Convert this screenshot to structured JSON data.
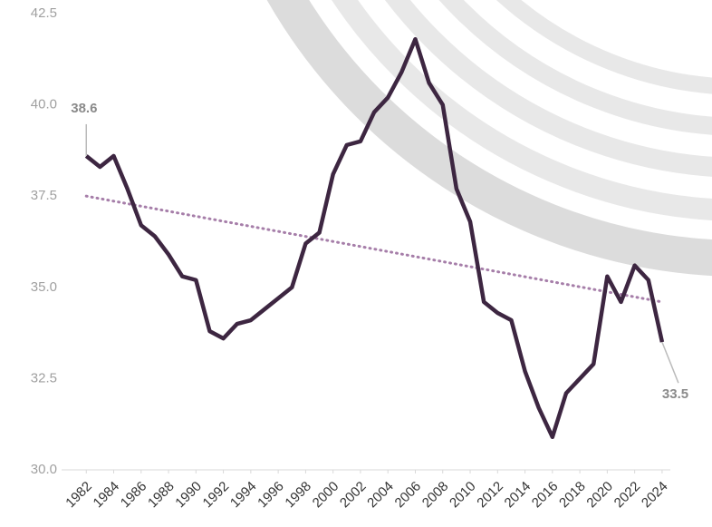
{
  "chart_data": {
    "type": "line",
    "x": [
      1982,
      1983,
      1984,
      1985,
      1986,
      1987,
      1988,
      1989,
      1990,
      1991,
      1992,
      1993,
      1994,
      1995,
      1996,
      1997,
      1998,
      1999,
      2000,
      2001,
      2002,
      2003,
      2004,
      2005,
      2006,
      2007,
      2008,
      2009,
      2010,
      2011,
      2012,
      2013,
      2014,
      2015,
      2016,
      2017,
      2018,
      2019,
      2020,
      2021,
      2022,
      2023,
      2024
    ],
    "series": [
      {
        "color": "#3d2641",
        "values": [
          38.6,
          38.3,
          38.6,
          37.7,
          36.7,
          36.4,
          35.9,
          35.3,
          35.2,
          33.8,
          33.6,
          34.0,
          34.1,
          34.4,
          34.7,
          35.0,
          36.2,
          36.5,
          38.1,
          38.9,
          39.0,
          39.8,
          40.2,
          40.9,
          41.8,
          40.6,
          40.0,
          37.7,
          36.8,
          34.6,
          34.3,
          34.1,
          32.7,
          31.7,
          30.9,
          32.1,
          32.5,
          32.9,
          35.3,
          34.6,
          35.6,
          35.2,
          33.5
        ]
      }
    ],
    "trend_line": {
      "color": "#a67ea9",
      "values": [
        37.5,
        34.6
      ]
    },
    "xlim": [
      1980.2,
      2024.6
    ],
    "xticks": [
      1982,
      1984,
      1986,
      1988,
      1990,
      1992,
      1994,
      1996,
      1998,
      2000,
      2002,
      2004,
      2006,
      2008,
      2010,
      2012,
      2014,
      2016,
      2018,
      2020,
      2022,
      2024
    ],
    "ylim": [
      30,
      42.5
    ],
    "yticks": [
      {
        "value": 30,
        "label": "30.0"
      },
      32.5,
      {
        "value": 35,
        "label": "35.0"
      },
      37.5,
      {
        "value": 40,
        "label": "40.0"
      },
      42.5
    ],
    "grid": false
  }
}
